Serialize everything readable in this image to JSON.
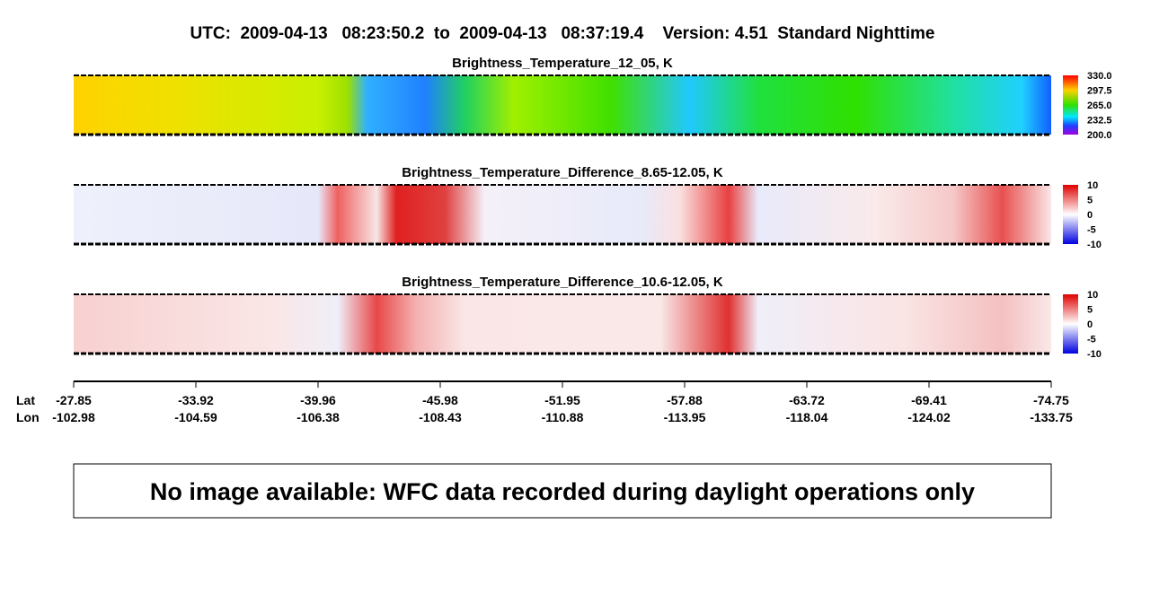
{
  "header": {
    "title": "UTC:  2009-04-13   08:23:50.2  to  2009-04-13   08:37:19.4    Version: 4.51  Standard Nighttime"
  },
  "panels": [
    {
      "title": "Brightness_Temperature_12_05, K",
      "colorbar": [
        "330.0",
        "297.5",
        "265.0",
        "232.5",
        "200.0"
      ]
    },
    {
      "title": "Brightness_Temperature_Difference_8.65-12.05, K",
      "colorbar": [
        "10",
        "5",
        "0",
        "-5",
        "-10"
      ]
    },
    {
      "title": "Brightness_Temperature_Difference_10.6-12.05, K",
      "colorbar": [
        "10",
        "5",
        "0",
        "-5",
        "-10"
      ]
    }
  ],
  "axis": {
    "lat_label": "Lat",
    "lon_label": "Lon",
    "lat": [
      "-27.85",
      "-33.92",
      "-39.96",
      "-45.98",
      "-51.95",
      "-57.88",
      "-63.72",
      "-69.41",
      "-74.75"
    ],
    "lon": [
      "-102.98",
      "-104.59",
      "-106.38",
      "-108.43",
      "-110.88",
      "-113.95",
      "-118.04",
      "-124.02",
      "-133.75"
    ]
  },
  "message": "No image available: WFC data recorded during daylight operations only"
}
